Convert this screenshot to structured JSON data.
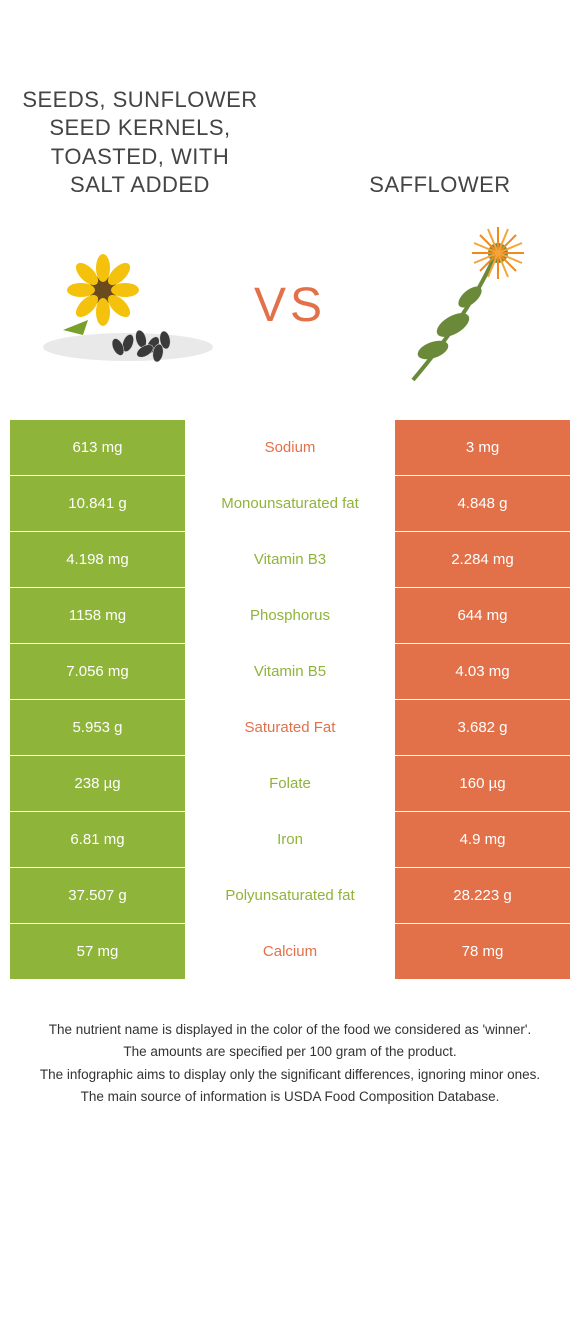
{
  "header": {
    "left_title": "SEEDS, SUNFLOWER SEED KERNELS, TOASTED, WITH SALT ADDED",
    "right_title": "SAFFLOWER"
  },
  "vs_label": "VS",
  "colors": {
    "left_bg": "#8fb43a",
    "right_bg": "#e2714a",
    "left_text": "#8fb43a",
    "right_text": "#e2714a",
    "vs_color": "#e2714a"
  },
  "rows": [
    {
      "left": "613 mg",
      "label": "Sodium",
      "right": "3 mg",
      "winner": "right"
    },
    {
      "left": "10.841 g",
      "label": "Monounsaturated fat",
      "right": "4.848 g",
      "winner": "left"
    },
    {
      "left": "4.198 mg",
      "label": "Vitamin B3",
      "right": "2.284 mg",
      "winner": "left"
    },
    {
      "left": "1158 mg",
      "label": "Phosphorus",
      "right": "644 mg",
      "winner": "left"
    },
    {
      "left": "7.056 mg",
      "label": "Vitamin B5",
      "right": "4.03 mg",
      "winner": "left"
    },
    {
      "left": "5.953 g",
      "label": "Saturated Fat",
      "right": "3.682 g",
      "winner": "right"
    },
    {
      "left": "238 µg",
      "label": "Folate",
      "right": "160 µg",
      "winner": "left"
    },
    {
      "left": "6.81 mg",
      "label": "Iron",
      "right": "4.9 mg",
      "winner": "left"
    },
    {
      "left": "37.507 g",
      "label": "Polyunsaturated fat",
      "right": "28.223 g",
      "winner": "left"
    },
    {
      "left": "57 mg",
      "label": "Calcium",
      "right": "78 mg",
      "winner": "right"
    }
  ],
  "footnotes": [
    "The nutrient name is displayed in the color of the food we considered as 'winner'.",
    "The amounts are specified per 100 gram of the product.",
    "The infographic aims to display only the significant differences, ignoring minor ones.",
    "The main source of information is USDA Food Composition Database."
  ]
}
